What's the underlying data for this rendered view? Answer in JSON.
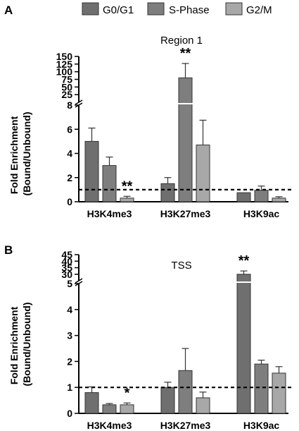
{
  "legend": {
    "items": [
      {
        "label": "G0/G1",
        "color": "#6f6f6f"
      },
      {
        "label": "S-Phase",
        "color": "#7e7e7e"
      },
      {
        "label": "G2/M",
        "color": "#a8a8a8"
      }
    ]
  },
  "chart_data": [
    {
      "type": "bar",
      "panel_label": "A",
      "title": "Region 1",
      "ylabel": "Fold Enrichment\n(Bound/Unbound)",
      "categories": [
        "H3K4me3",
        "H3K27me3",
        "H3K9ac"
      ],
      "series": [
        {
          "name": "G0/G1",
          "values": [
            5.0,
            1.5,
            0.75
          ],
          "errors": [
            1.1,
            0.5,
            0.0
          ]
        },
        {
          "name": "S-Phase",
          "values": [
            3.0,
            80,
            0.95
          ],
          "errors": [
            0.7,
            47,
            0.35
          ]
        },
        {
          "name": "G2/M",
          "values": [
            0.3,
            4.7,
            0.3
          ],
          "errors": [
            0.15,
            2.05,
            0.12
          ]
        }
      ],
      "significance": [
        {
          "category": "H3K4me3",
          "series": "G2/M",
          "mark": "**"
        },
        {
          "category": "H3K27me3",
          "series": "S-Phase",
          "mark": "**"
        }
      ],
      "reference_line": 1,
      "axis_break": {
        "lower_range": [
          0,
          8
        ],
        "upper_range": [
          0,
          150
        ]
      },
      "lower_ticks": [
        0,
        2,
        4,
        6,
        8
      ],
      "upper_ticks": [
        25,
        50,
        75,
        100,
        125,
        150
      ]
    },
    {
      "type": "bar",
      "panel_label": "B",
      "title": "TSS",
      "ylabel": "Fold Enrichment\n(Bound/Unbound)",
      "categories": [
        "H3K4me3",
        "H3K27me3",
        "H3K9ac"
      ],
      "series": [
        {
          "name": "G0/G1",
          "values": [
            0.8,
            1.0,
            30
          ],
          "errors": [
            0.22,
            0.2,
            2.5
          ]
        },
        {
          "name": "S-Phase",
          "values": [
            0.33,
            1.65,
            1.9
          ],
          "errors": [
            0.05,
            0.85,
            0.15
          ]
        },
        {
          "name": "G2/M",
          "values": [
            0.33,
            0.6,
            1.55
          ],
          "errors": [
            0.07,
            0.22,
            0.25
          ]
        }
      ],
      "significance": [
        {
          "category": "H3K4me3",
          "series": "G2/M",
          "mark": "*"
        },
        {
          "category": "H3K9ac",
          "series": "G0/G1",
          "mark": "**"
        }
      ],
      "reference_line": 1,
      "axis_break": {
        "lower_range": [
          0,
          5
        ],
        "upper_range": [
          25,
          45
        ]
      },
      "lower_ticks": [
        0,
        1,
        2,
        3,
        4,
        5
      ],
      "upper_ticks": [
        30,
        35,
        40,
        45
      ]
    }
  ]
}
